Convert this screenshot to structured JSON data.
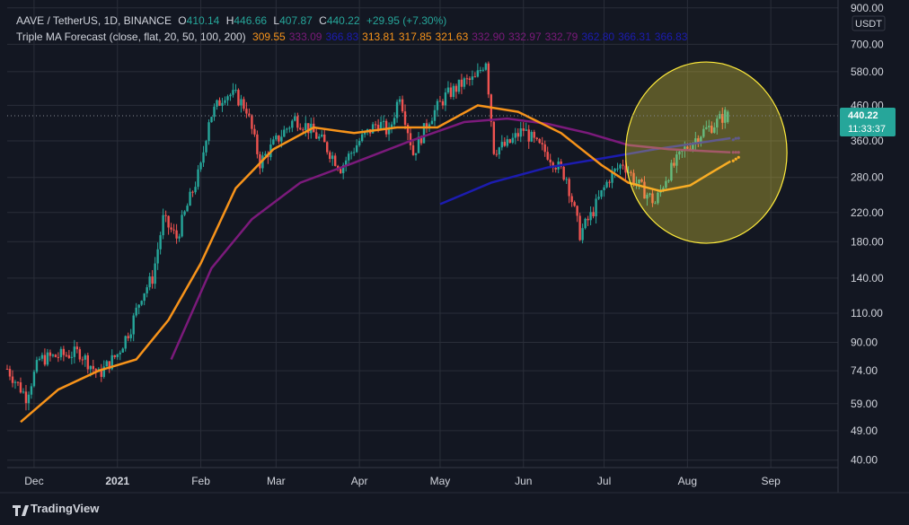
{
  "header": {
    "symbol": "AAVE / TetherUS, 1D, BINANCE",
    "o_label": "O",
    "o_value": "410.14",
    "h_label": "H",
    "h_value": "446.66",
    "l_label": "L",
    "l_value": "407.87",
    "c_label": "C",
    "c_value": "440.22",
    "change": "+29.95 (+7.30%)",
    "indicator": "Triple MA Forecast (close, flat, 20, 50, 100, 200)",
    "indicator_values": [
      {
        "text": "309.55",
        "color": "#f7931a"
      },
      {
        "text": "333.09",
        "color": "#7b1a7b"
      },
      {
        "text": "366.83",
        "color": "#1c1cb0"
      },
      {
        "text": "313.81",
        "color": "#f7931a"
      },
      {
        "text": "317.85",
        "color": "#f7931a"
      },
      {
        "text": "321.63",
        "color": "#f7931a"
      },
      {
        "text": "332.90",
        "color": "#7b1a7b"
      },
      {
        "text": "332.97",
        "color": "#7b1a7b"
      },
      {
        "text": "332.79",
        "color": "#7b1a7b"
      },
      {
        "text": "362.80",
        "color": "#1c1cb0"
      },
      {
        "text": "366.31",
        "color": "#1c1cb0"
      },
      {
        "text": "366.83",
        "color": "#1c1cb0"
      }
    ]
  },
  "colors": {
    "background": "#131722",
    "grid": "#2a2e39",
    "text": "#d1d4dc",
    "up": "#26a69a",
    "down": "#ef5350",
    "ma20": "#f7931a",
    "ma50": "#7b1a7b",
    "ma100": "#1c1cb0",
    "ellipse_fill": "#ffeb3b",
    "ellipse_stroke": "#ffeb3b"
  },
  "price_axis": {
    "currency": "USDT",
    "scale": "log",
    "range": [
      38,
      950
    ],
    "ticks": [
      "900.00",
      "700.00",
      "580.00",
      "460.00",
      "360.00",
      "280.00",
      "220.00",
      "180.00",
      "140.00",
      "110.00",
      "90.00",
      "74.00",
      "59.00",
      "49.00",
      "40.00"
    ],
    "last_price": "440.22",
    "countdown": "11:33:37"
  },
  "time_axis": {
    "labels": [
      {
        "text": "Dec",
        "date": "2020-12-01",
        "bold": false
      },
      {
        "text": "2021",
        "date": "2021-01-01",
        "bold": true
      },
      {
        "text": "Feb",
        "date": "2021-02-01",
        "bold": false
      },
      {
        "text": "Mar",
        "date": "2021-03-01",
        "bold": false
      },
      {
        "text": "Apr",
        "date": "2021-04-01",
        "bold": false
      },
      {
        "text": "May",
        "date": "2021-05-01",
        "bold": false
      },
      {
        "text": "Jun",
        "date": "2021-06-01",
        "bold": false
      },
      {
        "text": "Jul",
        "date": "2021-07-01",
        "bold": false
      },
      {
        "text": "Aug",
        "date": "2021-08-01",
        "bold": false
      },
      {
        "text": "Sep",
        "date": "2021-09-01",
        "bold": false
      }
    ],
    "range": [
      "2020-11-21",
      "2021-09-26"
    ]
  },
  "chart_data": {
    "type": "candlestick",
    "title": "AAVE / TetherUS, 1D, BINANCE",
    "y_scale": "log",
    "price_anchors": [
      [
        "2020-11-21",
        75
      ],
      [
        "2020-11-28",
        62
      ],
      [
        "2020-12-03",
        80
      ],
      [
        "2020-12-10",
        82
      ],
      [
        "2020-12-18",
        84
      ],
      [
        "2020-12-25",
        72
      ],
      [
        "2021-01-01",
        83
      ],
      [
        "2021-01-06",
        100
      ],
      [
        "2021-01-10",
        125
      ],
      [
        "2021-01-14",
        140
      ],
      [
        "2021-01-18",
        210
      ],
      [
        "2021-01-23",
        185
      ],
      [
        "2021-01-27",
        230
      ],
      [
        "2021-02-01",
        300
      ],
      [
        "2021-02-04",
        420
      ],
      [
        "2021-02-10",
        500
      ],
      [
        "2021-02-14",
        490
      ],
      [
        "2021-02-18",
        450
      ],
      [
        "2021-02-23",
        310
      ],
      [
        "2021-03-01",
        360
      ],
      [
        "2021-03-08",
        420
      ],
      [
        "2021-03-12",
        400
      ],
      [
        "2021-03-18",
        360
      ],
      [
        "2021-03-25",
        300
      ],
      [
        "2021-04-01",
        360
      ],
      [
        "2021-04-08",
        410
      ],
      [
        "2021-04-12",
        380
      ],
      [
        "2021-04-16",
        500
      ],
      [
        "2021-04-21",
        330
      ],
      [
        "2021-04-27",
        420
      ],
      [
        "2021-05-03",
        490
      ],
      [
        "2021-05-10",
        540
      ],
      [
        "2021-05-14",
        550
      ],
      [
        "2021-05-18",
        630
      ],
      [
        "2021-05-21",
        340
      ],
      [
        "2021-05-26",
        350
      ],
      [
        "2021-06-01",
        390
      ],
      [
        "2021-06-06",
        350
      ],
      [
        "2021-06-10",
        330
      ],
      [
        "2021-06-17",
        280
      ],
      [
        "2021-06-22",
        190
      ],
      [
        "2021-06-26",
        215
      ],
      [
        "2021-07-03",
        280
      ],
      [
        "2021-07-08",
        310
      ],
      [
        "2021-07-13",
        270
      ],
      [
        "2021-07-20",
        235
      ],
      [
        "2021-07-24",
        280
      ],
      [
        "2021-07-31",
        340
      ],
      [
        "2021-08-06",
        380
      ],
      [
        "2021-08-12",
        410
      ],
      [
        "2021-08-16",
        440
      ]
    ],
    "ma20": [
      [
        "2020-11-26",
        52
      ],
      [
        "2020-12-10",
        65
      ],
      [
        "2020-12-25",
        74
      ],
      [
        "2021-01-08",
        80
      ],
      [
        "2021-01-20",
        105
      ],
      [
        "2021-02-01",
        155
      ],
      [
        "2021-02-14",
        260
      ],
      [
        "2021-02-28",
        340
      ],
      [
        "2021-03-15",
        395
      ],
      [
        "2021-03-30",
        380
      ],
      [
        "2021-04-15",
        395
      ],
      [
        "2021-04-30",
        395
      ],
      [
        "2021-05-15",
        460
      ],
      [
        "2021-05-30",
        440
      ],
      [
        "2021-06-15",
        380
      ],
      [
        "2021-06-30",
        305
      ],
      [
        "2021-07-10",
        270
      ],
      [
        "2021-07-22",
        255
      ],
      [
        "2021-08-02",
        265
      ],
      [
        "2021-08-10",
        290
      ],
      [
        "2021-08-17",
        313
      ]
    ],
    "ma50": [
      [
        "2021-01-21",
        80
      ],
      [
        "2021-02-05",
        150
      ],
      [
        "2021-02-20",
        210
      ],
      [
        "2021-03-10",
        270
      ],
      [
        "2021-03-30",
        310
      ],
      [
        "2021-04-20",
        360
      ],
      [
        "2021-05-10",
        410
      ],
      [
        "2021-05-26",
        420
      ],
      [
        "2021-06-10",
        405
      ],
      [
        "2021-06-25",
        380
      ],
      [
        "2021-07-10",
        350
      ],
      [
        "2021-07-25",
        340
      ],
      [
        "2021-08-10",
        335
      ],
      [
        "2021-08-17",
        333
      ]
    ],
    "ma100": [
      [
        "2021-05-01",
        233
      ],
      [
        "2021-05-20",
        270
      ],
      [
        "2021-06-10",
        300
      ],
      [
        "2021-07-01",
        320
      ],
      [
        "2021-07-20",
        340
      ],
      [
        "2021-08-05",
        355
      ],
      [
        "2021-08-17",
        366.83
      ]
    ],
    "forecast_ma20": [
      "313.81",
      "317.85",
      "321.63"
    ],
    "forecast_ma50": [
      "332.90",
      "332.97",
      "332.79"
    ],
    "forecast_ma100": [
      "362.80",
      "366.31",
      "366.83"
    ],
    "annotation": {
      "type": "ellipse",
      "center_date": "2021-08-08",
      "center_price": 290,
      "rx_days": 30,
      "ry_top": 620,
      "ry_bottom": 178
    }
  },
  "footer": {
    "brand": "TradingView"
  }
}
